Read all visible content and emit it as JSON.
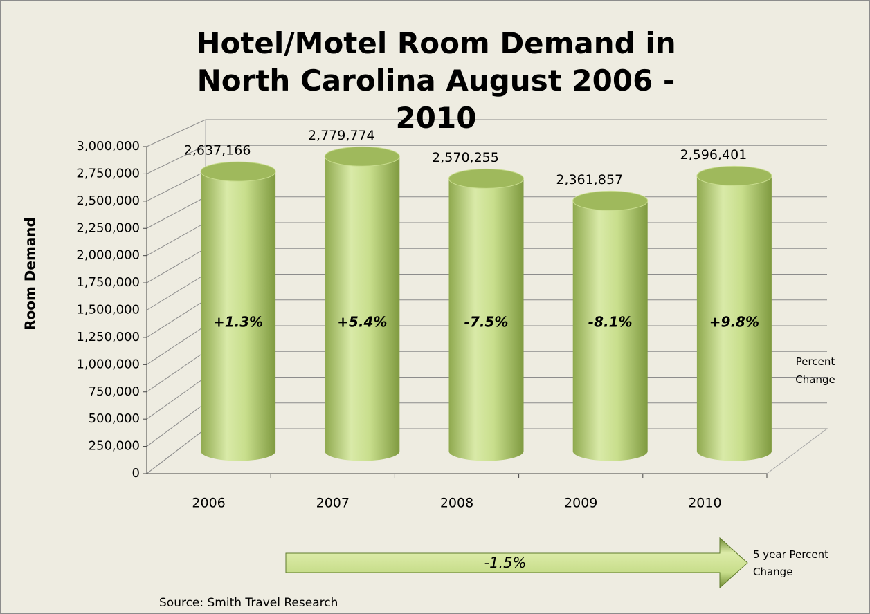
{
  "chart_data": {
    "type": "bar",
    "title": "Hotel/Motel Room Demand in North Carolina August 2006 - 2010",
    "y_label": "Room Demand",
    "categories": [
      "2006",
      "2007",
      "2008",
      "2009",
      "2010"
    ],
    "values": [
      2637166,
      2779774,
      2570255,
      2361857,
      2596401
    ],
    "value_labels": [
      "2,637,166",
      "2,779,774",
      "2,570,255",
      "2,361,857",
      "2,596,401"
    ],
    "color": "#b5cf72",
    "ylim": [
      0,
      3000000
    ],
    "yticks": [
      0,
      {
        "value": 250000,
        "label": "250,000"
      },
      {
        "value": 500000,
        "label": "500,000"
      },
      {
        "value": 750000,
        "label": "750,000"
      },
      {
        "value": 1000000,
        "label": "1,000,000"
      },
      {
        "value": 1250000,
        "label": "1,250,000"
      },
      {
        "value": 1500000,
        "label": "1,500,000"
      },
      {
        "value": 1750000,
        "label": "1,750,000"
      },
      {
        "value": 2000000,
        "label": "2,000,000"
      },
      {
        "value": 2250000,
        "label": "2,250,000"
      },
      {
        "value": 2500000,
        "label": "2,500,000"
      },
      {
        "value": 2750000,
        "label": "2,750,000"
      },
      {
        "value": 3000000,
        "label": "3,000,000"
      }
    ],
    "grid": true,
    "percent_change": [
      "+1.3%",
      "+5.4%",
      "-7.5%",
      "-8.1%",
      "+9.8%"
    ],
    "percent_change_label": "Percent Change",
    "five_year_change": "-1.5%",
    "five_year_label": "5 year Percent Change",
    "source": "Source: Smith Travel Research"
  }
}
